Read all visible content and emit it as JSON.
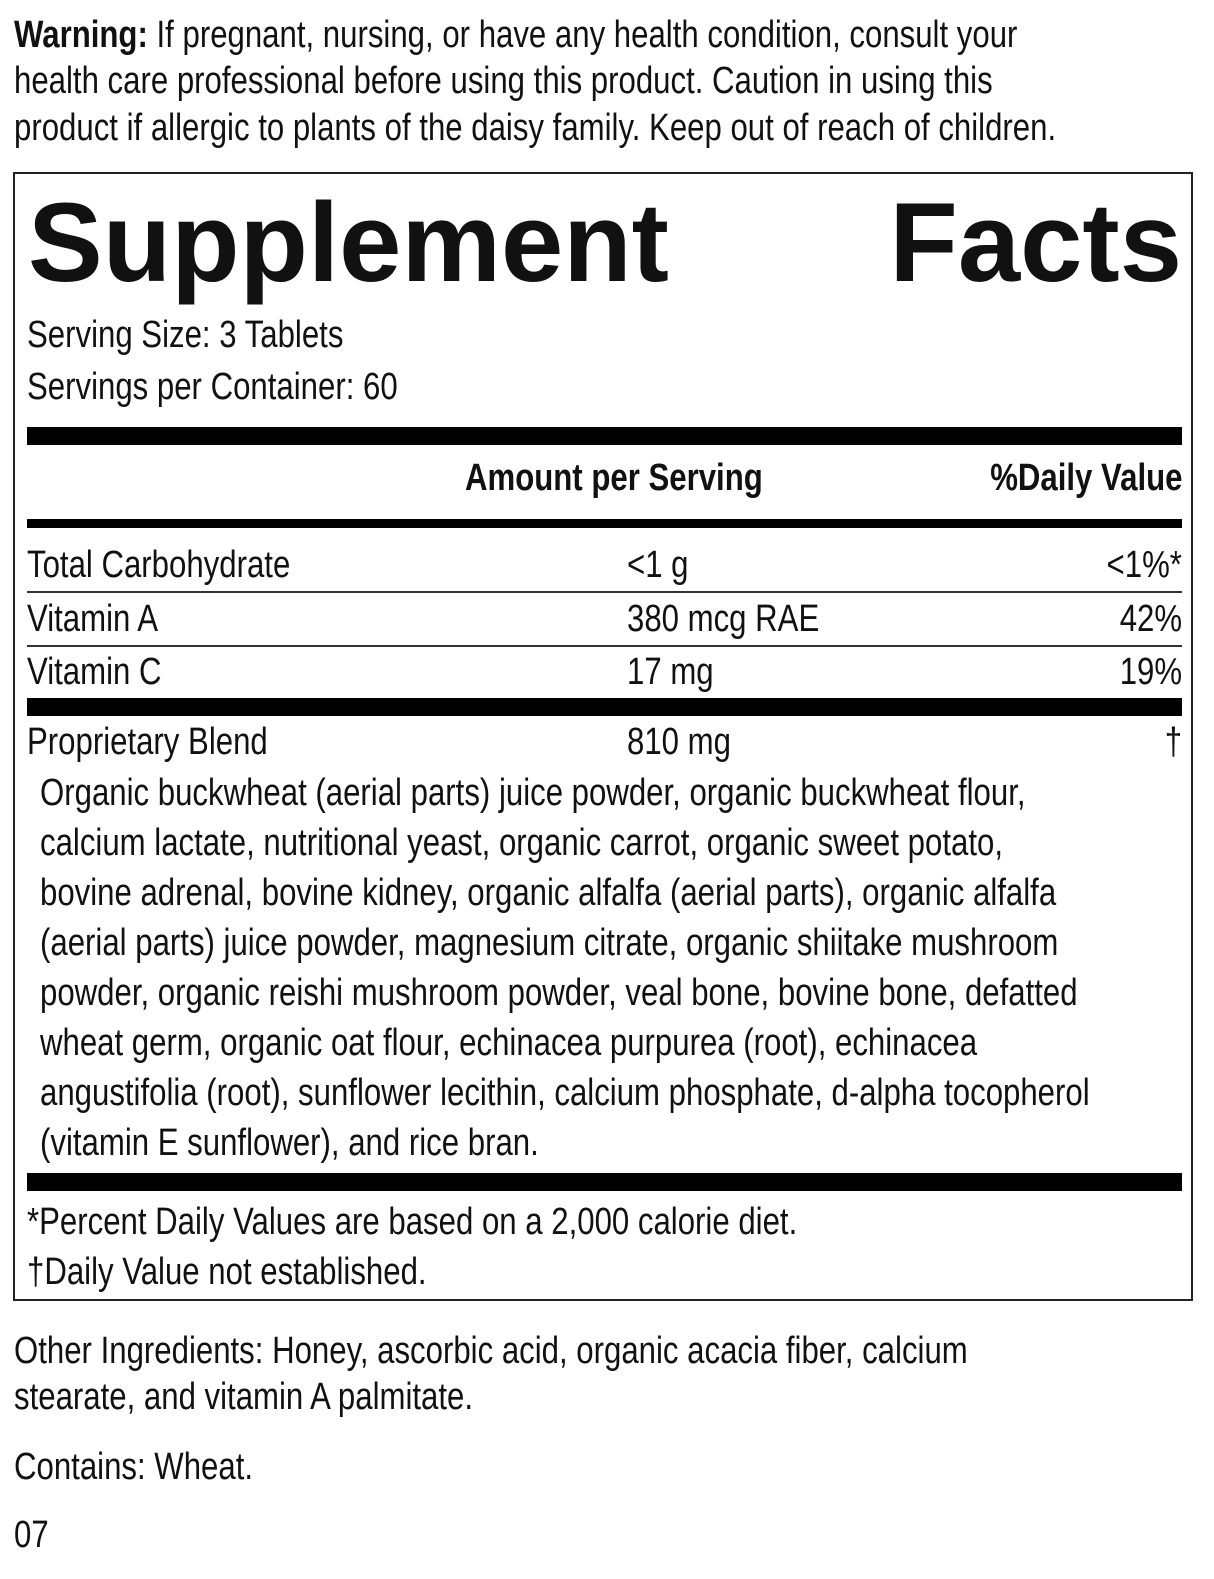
{
  "warning": {
    "label": "Warning:",
    "lines": [
      "If pregnant, nursing, or have any health condition, consult your",
      "health care professional before using this product. Caution in using this",
      "product if allergic to plants of the daisy family. Keep out of reach of children."
    ]
  },
  "facts": {
    "title": "Supplement Facts",
    "serving_size": "Serving Size: 3 Tablets",
    "servings_per_container": "Servings per Container: 60",
    "header": {
      "amount": "Amount per Serving",
      "daily_value": "%Daily Value"
    },
    "rows": [
      [
        "Total Carbohydrate",
        "<1 g",
        "<1%*"
      ],
      [
        "Vitamin A",
        "380 mcg RAE",
        "42%"
      ],
      [
        "Vitamin C",
        "17 mg",
        "19%"
      ]
    ],
    "blend": {
      "name": "Proprietary Blend",
      "amount": "810 mg",
      "daily_value": "†",
      "ingredients": [
        "Organic buckwheat (aerial parts) juice powder, organic buckwheat flour,",
        "calcium lactate, nutritional yeast, organic carrot, organic sweet potato,",
        "bovine adrenal, bovine kidney, organic alfalfa (aerial parts), organic alfalfa",
        "(aerial parts) juice powder, magnesium citrate, organic shiitake mushroom",
        "powder, organic reishi mushroom powder, veal bone, bovine bone, defatted",
        "wheat germ, organic oat flour, echinacea purpurea (root), echinacea",
        "angustifolia (root), sunflower lecithin, calcium phosphate, d-alpha tocopherol",
        "(vitamin E sunflower), and rice bran."
      ]
    },
    "footnotes": [
      "*Percent Daily Values are based on a 2,000 calorie diet.",
      "†Daily Value not established."
    ]
  },
  "other_ingredients": [
    "Other Ingredients: Honey, ascorbic acid, organic acacia fiber, calcium",
    "stearate, and vitamin A palmitate."
  ],
  "contains": "Contains: Wheat.",
  "code": "07"
}
